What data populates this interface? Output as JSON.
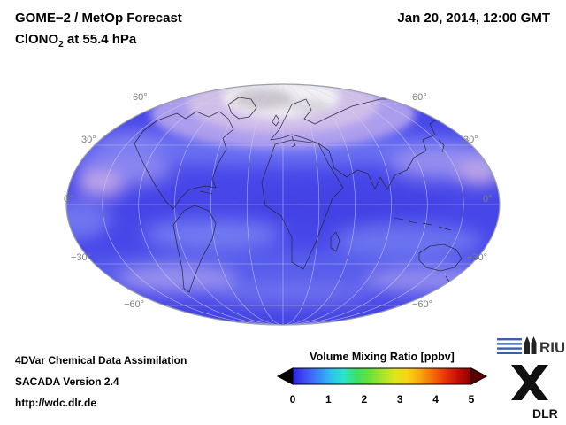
{
  "header": {
    "title": "GOME−2 / MetOp Forecast",
    "product_prefix": "ClONO",
    "product_sub": "2",
    "product_suffix": " at 55.4 hPa",
    "datetime": "Jan 20, 2014, 12:00 GMT"
  },
  "map": {
    "lat_labels_left": [
      "60°",
      "30°",
      "0°",
      "−30°",
      "−60°"
    ],
    "lat_labels_right": [
      "60°",
      "30°",
      "0°",
      "−30°",
      "−60°"
    ]
  },
  "footer": {
    "line1": "4DVar Chemical Data Assimilation",
    "line2": "SACADA Version 2.4",
    "line3": "http://wdc.dlr.de"
  },
  "colorbar": {
    "title": "Volume Mixing Ratio [ppbv]",
    "ticks": [
      "0",
      "1",
      "2",
      "3",
      "4",
      "5"
    ],
    "gradient": [
      "#2822dd",
      "#4250f5",
      "#3a86f8",
      "#2fc0f0",
      "#2de4c8",
      "#3edf66",
      "#66e23c",
      "#a6e42c",
      "#dce61e",
      "#f9d216",
      "#f9a60e",
      "#f56a08",
      "#e93207",
      "#c00d06",
      "#8b0000"
    ],
    "underflow_color": "#000000",
    "overflow_color": "#5a0000"
  },
  "logos": {
    "riu_text": "RIU",
    "dlr_text": "DLR"
  },
  "chart_data": {
    "type": "heatmap",
    "title": "GOME−2 / MetOp Forecast — ClONO2 at 55.4 hPa",
    "timestamp": "Jan 20, 2014, 12:00 GMT",
    "projection": "mollweide global (centered on 0° longitude)",
    "colorbar_label": "Volume Mixing Ratio [ppbv]",
    "value_range": [
      0,
      5
    ],
    "tick_values": [
      0,
      1,
      2,
      3,
      4,
      5
    ],
    "colormap": "rainbow: blue → cyan → green → yellow → orange → red → dark red, with under/over-range arrows",
    "graticule_parallels_deg": [
      60,
      30,
      0,
      -30,
      -60
    ],
    "graticule_meridian_step_deg": 30,
    "field_summary": {
      "north_polar_cap": "white / saturated area over Arctic surrounded by gray fringe",
      "arctic_ring_60N": "enhanced lavender-pink ring, ~1–2 ppbv",
      "northern_midlatitudes": "wavy light-blue band, ~0.7–1 ppbv",
      "tropics": "deep blue background, ~0.2–0.5 ppbv",
      "southern_midlatitudes": "wavy light-blue / lavender band near 30–60°S, ~0.7–1.2 ppbv",
      "south_polar_edge": "medium blue, ~0.4–0.6 ppbv"
    },
    "zonal_mean_estimate_ppbv": [
      {
        "lat": 85,
        "value": "no data (white cap)"
      },
      {
        "lat": 65,
        "value": 1.5
      },
      {
        "lat": 45,
        "value": 0.9
      },
      {
        "lat": 25,
        "value": 0.5
      },
      {
        "lat": 0,
        "value": 0.3
      },
      {
        "lat": -25,
        "value": 0.5
      },
      {
        "lat": -45,
        "value": 0.9
      },
      {
        "lat": -65,
        "value": 0.5
      }
    ]
  }
}
